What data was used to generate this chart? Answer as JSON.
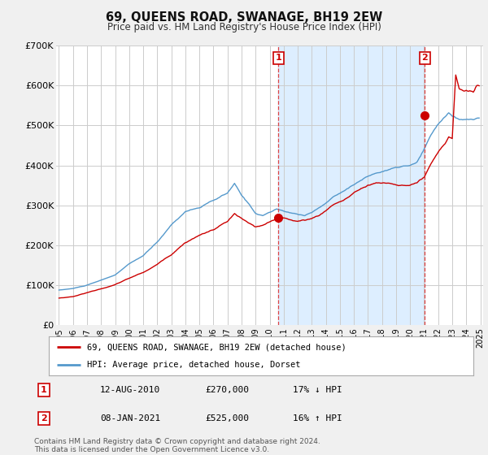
{
  "title": "69, QUEENS ROAD, SWANAGE, BH19 2EW",
  "subtitle": "Price paid vs. HM Land Registry's House Price Index (HPI)",
  "background_color": "#f0f0f0",
  "plot_bg_color": "#ffffff",
  "grid_color": "#cccccc",
  "hpi_color": "#5599cc",
  "price_color": "#cc0000",
  "shade_color": "#ddeeff",
  "vline_color": "#dd4444",
  "ylim": [
    0,
    700000
  ],
  "yticks": [
    0,
    100000,
    200000,
    300000,
    400000,
    500000,
    600000,
    700000
  ],
  "ytick_labels": [
    "£0",
    "£100K",
    "£200K",
    "£300K",
    "£400K",
    "£500K",
    "£600K",
    "£700K"
  ],
  "xlim_left": 1994.8,
  "xlim_right": 2025.2,
  "sale1_year": 2010.62,
  "sale1_price": 270000,
  "sale1_label": "1",
  "sale2_year": 2021.04,
  "sale2_price": 525000,
  "sale2_label": "2",
  "legend_line1": "69, QUEENS ROAD, SWANAGE, BH19 2EW (detached house)",
  "legend_line2": "HPI: Average price, detached house, Dorset",
  "note1_label": "1",
  "note1_date": "12-AUG-2010",
  "note1_price": "£270,000",
  "note1_hpi": "17% ↓ HPI",
  "note2_label": "2",
  "note2_date": "08-JAN-2021",
  "note2_price": "£525,000",
  "note2_hpi": "16% ↑ HPI",
  "footer": "Contains HM Land Registry data © Crown copyright and database right 2024.\nThis data is licensed under the Open Government Licence v3.0."
}
